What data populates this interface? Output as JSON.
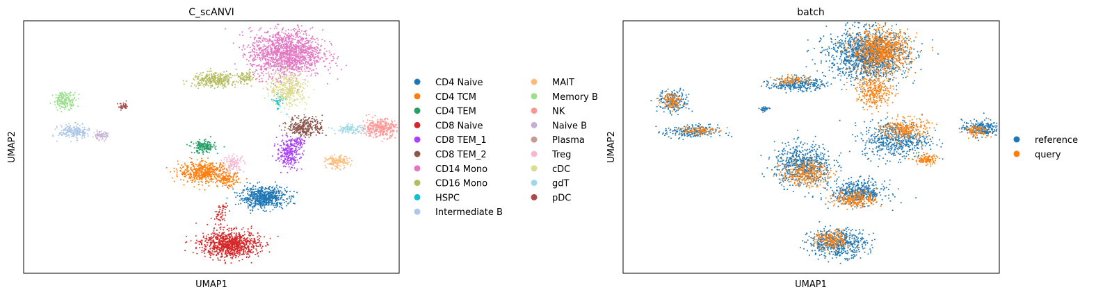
{
  "chart_data": [
    {
      "type": "scatter",
      "title": "C_scANVI",
      "xlabel": "UMAP1",
      "ylabel": "UMAP2",
      "xlim": [
        -10,
        10
      ],
      "ylim": [
        -10,
        10
      ],
      "show_ticks": false,
      "grid": false,
      "legend_position": "right, outside",
      "legend_columns": 2,
      "series": [
        {
          "name": "CD4 Naive",
          "color": "#1f77b4",
          "clusters": [
            [
              2.8,
              -4.0,
              1.1,
              0.75,
              650
            ]
          ]
        },
        {
          "name": "CD4 TCM",
          "color": "#ff7f0e",
          "clusters": [
            [
              -0.4,
              -2.0,
              1.2,
              0.75,
              520
            ],
            [
              0.9,
              -2.6,
              0.5,
              0.5,
              120
            ]
          ]
        },
        {
          "name": "CD4 TEM",
          "color": "#279e68",
          "clusters": [
            [
              -0.4,
              0.0,
              0.55,
              0.45,
              180
            ]
          ]
        },
        {
          "name": "CD8 Naive",
          "color": "#d62728",
          "clusters": [
            [
              1.0,
              -7.7,
              1.4,
              0.95,
              900
            ],
            [
              0.5,
              -5.3,
              0.35,
              0.9,
              60
            ]
          ]
        },
        {
          "name": "CD8 TEM_1",
          "color": "#aa40fc",
          "clusters": [
            [
              4.1,
              -0.5,
              0.55,
              1.0,
              260
            ],
            [
              4.6,
              0.4,
              0.3,
              0.4,
              60
            ]
          ]
        },
        {
          "name": "CD8 TEM_2",
          "color": "#8c564b",
          "clusters": [
            [
              5.0,
              1.6,
              0.85,
              0.7,
              300
            ]
          ]
        },
        {
          "name": "CD14 Mono",
          "color": "#e377c2",
          "clusters": [
            [
              4.0,
              7.4,
              1.75,
              1.7,
              1500
            ]
          ]
        },
        {
          "name": "CD16 Mono",
          "color": "#b5bd61",
          "clusters": [
            [
              0.2,
              5.3,
              1.1,
              0.5,
              320
            ],
            [
              1.8,
              5.5,
              0.5,
              0.4,
              80
            ]
          ]
        },
        {
          "name": "HSPC",
          "color": "#17becf",
          "clusters": [
            [
              3.6,
              3.6,
              0.3,
              0.6,
              40
            ]
          ]
        },
        {
          "name": "Intermediate B",
          "color": "#aec7e8",
          "clusters": [
            [
              -7.3,
              1.2,
              0.75,
              0.5,
              220
            ]
          ]
        },
        {
          "name": "MAIT",
          "color": "#ffbb78",
          "clusters": [
            [
              6.7,
              -1.2,
              0.55,
              0.45,
              140
            ]
          ]
        },
        {
          "name": "Memory B",
          "color": "#98df8a",
          "clusters": [
            [
              -7.8,
              3.7,
              0.55,
              0.6,
              180
            ]
          ]
        },
        {
          "name": "NK",
          "color": "#ff9896",
          "clusters": [
            [
              9.0,
              1.5,
              0.9,
              0.65,
              360
            ]
          ]
        },
        {
          "name": "Naive B",
          "color": "#c5b0d5",
          "clusters": [
            [
              -5.9,
              0.9,
              0.35,
              0.3,
              70
            ]
          ]
        },
        {
          "name": "Plasma",
          "color": "#c49c94",
          "clusters": [
            [
              -10.0,
              2.7,
              0.12,
              0.05,
              4
            ]
          ]
        },
        {
          "name": "Treg",
          "color": "#f7b6d2",
          "clusters": [
            [
              1.2,
              -1.3,
              0.5,
              0.6,
              110
            ]
          ]
        },
        {
          "name": "cDC",
          "color": "#dbdb8d",
          "clusters": [
            [
              4.1,
              4.6,
              0.9,
              1.2,
              360
            ]
          ]
        },
        {
          "name": "gdT",
          "color": "#9edae5",
          "clusters": [
            [
              7.4,
              1.4,
              0.7,
              0.3,
              110
            ]
          ]
        },
        {
          "name": "pDC",
          "color": "#ad494a",
          "clusters": [
            [
              -4.7,
              3.2,
              0.25,
              0.25,
              40
            ]
          ]
        }
      ]
    },
    {
      "type": "scatter",
      "title": "batch",
      "xlabel": "UMAP1",
      "ylabel": "UMAP2",
      "xlim": [
        -10,
        10
      ],
      "ylim": [
        -10,
        10
      ],
      "show_ticks": false,
      "grid": false,
      "legend_position": "right, outside",
      "legend_columns": 1,
      "series": [
        {
          "name": "reference",
          "color": "#1f77b4",
          "clusters": [
            [
              3.0,
              7.3,
              1.9,
              1.8,
              1300
            ],
            [
              -0.7,
              5.0,
              1.3,
              0.5,
              280
            ],
            [
              -7.3,
              3.6,
              0.75,
              0.8,
              200
            ],
            [
              -6.4,
              1.2,
              1.3,
              0.5,
              220
            ],
            [
              4.5,
              0.6,
              1.6,
              1.3,
              540
            ],
            [
              9.0,
              1.5,
              0.9,
              0.6,
              230
            ],
            [
              -0.4,
              -1.4,
              1.4,
              1.5,
              620
            ],
            [
              2.5,
              -3.6,
              1.3,
              0.85,
              460
            ],
            [
              1.4,
              -7.6,
              1.4,
              1.0,
              560
            ],
            [
              -2.5,
              3.0,
              0.25,
              0.2,
              30
            ]
          ]
        },
        {
          "name": "query",
          "color": "#ff7f0e",
          "clusters": [
            [
              3.7,
              7.6,
              1.4,
              1.5,
              900
            ],
            [
              3.4,
              4.4,
              0.9,
              1.1,
              300
            ],
            [
              -1.0,
              5.3,
              0.9,
              0.3,
              80
            ],
            [
              -7.4,
              3.7,
              0.5,
              0.55,
              100
            ],
            [
              -6.1,
              1.3,
              0.9,
              0.35,
              90
            ],
            [
              5.0,
              1.4,
              1.1,
              0.8,
              260
            ],
            [
              6.1,
              -1.0,
              0.55,
              0.4,
              110
            ],
            [
              8.8,
              1.3,
              0.6,
              0.4,
              90
            ],
            [
              -0.3,
              -2.1,
              1.1,
              0.9,
              300
            ],
            [
              2.4,
              -4.1,
              1.0,
              0.6,
              240
            ],
            [
              1.1,
              -7.4,
              0.8,
              0.7,
              180
            ]
          ]
        }
      ]
    }
  ]
}
